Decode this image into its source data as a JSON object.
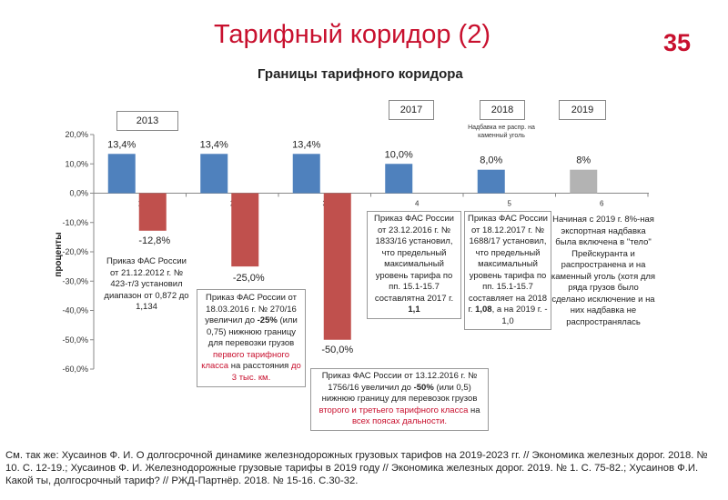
{
  "slide": {
    "title": "Тарифный коридор (2)",
    "page_number": "35"
  },
  "chart_data": {
    "type": "bar",
    "title": "Границы тарифного коридора",
    "ylabel": "проценты",
    "ylim": [
      -60,
      20
    ],
    "ytick_labels": [
      "20,0%",
      "10,0%",
      "0,0%",
      "-10,0%",
      "-20,0%",
      "-30,0%",
      "-40,0%",
      "-50,0%",
      "-60,0%"
    ],
    "yticks": [
      20,
      10,
      0,
      -10,
      -20,
      -30,
      -40,
      -50,
      -60
    ],
    "categories": [
      "1",
      "2",
      "3",
      "4",
      "5",
      "6"
    ],
    "series": [
      {
        "values": [
          13.4,
          13.4,
          13.4,
          10.0,
          8.0,
          8.0
        ],
        "colors": [
          "#4f81bd",
          "#4f81bd",
          "#4f81bd",
          "#4f81bd",
          "#4f81bd",
          "#b3b3b3"
        ],
        "labels": [
          "13,4%",
          "13,4%",
          "13,4%",
          "10,0%",
          "8,0%",
          "8%"
        ]
      },
      {
        "values": [
          -12.8,
          -25.0,
          -50.0,
          null,
          null,
          null
        ],
        "colors": [
          "#c0504d",
          "#c0504d",
          "#c0504d"
        ],
        "labels": [
          "-12,8%",
          "-25,0%",
          "-50,0%"
        ]
      }
    ],
    "grid": false,
    "legend": "none"
  },
  "years": {
    "y2013": "2013",
    "y2017": "2017",
    "y2018": "2018",
    "y2019": "2019"
  },
  "note_2018": "Надбавка не распр. на каменный уголь",
  "annotations": {
    "a1": "Приказ ФАС России от 21.12.2012 г. № 423-т/3 установил диапазон от 0,872 до 1,134",
    "a2_part1": "Приказ ФАС России от 18.03.2016 г. № 270/16 увеличил до",
    "a2_bold": "-25%",
    "a2_part2": "(или 0,75) нижнюю границу для перевозки грузов",
    "a2_red1": "первого тарифного класса",
    "a2_part3": "на расстояния",
    "a2_red2": "до 3 тыс. км.",
    "a3_part1": "Приказ ФАС России от 13.12.2016 г. № 1756/16 увеличил до",
    "a3_bold": "-50%",
    "a3_part2": "(или 0,5) нижнюю границу для перевозок грузов",
    "a3_red1": "второго и третьего тарифного класса",
    "a3_part3": "на",
    "a3_red2": "всех поясах дальности.",
    "a4_text": "Приказ ФАС России от 23.12.2016 г. № 1833/16 установил, что предельный максимальный уровень тарифа по пп. 15.1-15.7 составлятна 2017 г.",
    "a4_bold": "1,1",
    "a5_text": "Приказ ФАС России от 18.12.2017 г. № 1688/17 установил, что предельный максимальный уровень тарифа по пп. 15.1-15.7 составляет на 2018 г.",
    "a5_bold": "1,08",
    "a5_tail": ", а на 2019 г. - 1,0",
    "a6": "Начиная с 2019 г. 8%-ная экспортная надбавка была включена в \"тело\" Прейскуранта и распространена и на каменный уголь (хотя для ряда грузов было сделано исключение и на них надбавка не распространялась"
  },
  "footer": "См. так же: Хусаинов Ф. И. О долгосрочной динамике железнодорожных грузовых тарифов на 2019-2023 гг. // Экономика железных дорог. 2018. № 10. С. 12-19.; Хусаинов Ф. И. Железнодорожные грузовые тарифы в 2019 году // Экономика железных дорог. 2019. № 1. С. 75-82.; Хусаинов Ф.И. Какой ты, долгосрочный тариф? // РЖД-Партнёр. 2018. № 15-16. С.30-32."
}
